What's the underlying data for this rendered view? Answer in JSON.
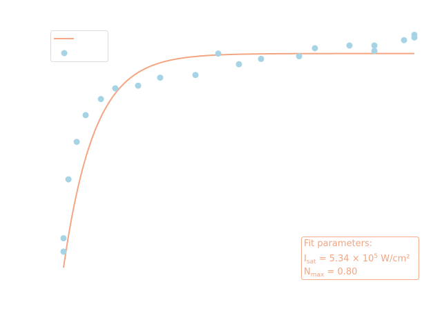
{
  "chart_data": {
    "type": "scatter",
    "title": "",
    "xlabel": "",
    "ylabel": "",
    "xlim": [
      0,
      200
    ],
    "ylim": [
      -0.1,
      1.0
    ],
    "grid": false,
    "legend": {
      "placement": "top-left"
    },
    "series": [
      {
        "kind": "line",
        "color": "#f4a582",
        "model": "saturation",
        "params": {
          "Nmax": 0.8,
          "k": 0.057
        },
        "x_range": [
          0,
          200
        ]
      },
      {
        "kind": "scatter",
        "color": "#a6d4e4",
        "points": [
          {
            "x": 0.0,
            "y": 0.11
          },
          {
            "x": 0.0,
            "y": 0.06
          },
          {
            "x": 2.8,
            "y": 0.33
          },
          {
            "x": 7.5,
            "y": 0.47
          },
          {
            "x": 12.6,
            "y": 0.57
          },
          {
            "x": 21.3,
            "y": 0.63
          },
          {
            "x": 29.5,
            "y": 0.67
          },
          {
            "x": 42.5,
            "y": 0.68
          },
          {
            "x": 55.1,
            "y": 0.71
          },
          {
            "x": 75.2,
            "y": 0.72
          },
          {
            "x": 88.2,
            "y": 0.8
          },
          {
            "x": 100.0,
            "y": 0.76
          },
          {
            "x": 112.6,
            "y": 0.78
          },
          {
            "x": 134.3,
            "y": 0.79
          },
          {
            "x": 143.3,
            "y": 0.82
          },
          {
            "x": 163.0,
            "y": 0.83
          },
          {
            "x": 177.2,
            "y": 0.81
          },
          {
            "x": 177.2,
            "y": 0.83
          },
          {
            "x": 194.1,
            "y": 0.85
          },
          {
            "x": 200.0,
            "y": 0.86
          },
          {
            "x": 200.0,
            "y": 0.87
          }
        ]
      }
    ],
    "annotation": {
      "heading": "Fit parameters:",
      "line1_symbol": "I",
      "line1_sub": "sat",
      "line1_text": " = 5.34 × 10",
      "line1_sup": "5",
      "line1_unit": " W/cm²",
      "line2_symbol": "N",
      "line2_sub": "max",
      "line2_text": " = 0.80",
      "color": "#f4a582"
    }
  }
}
